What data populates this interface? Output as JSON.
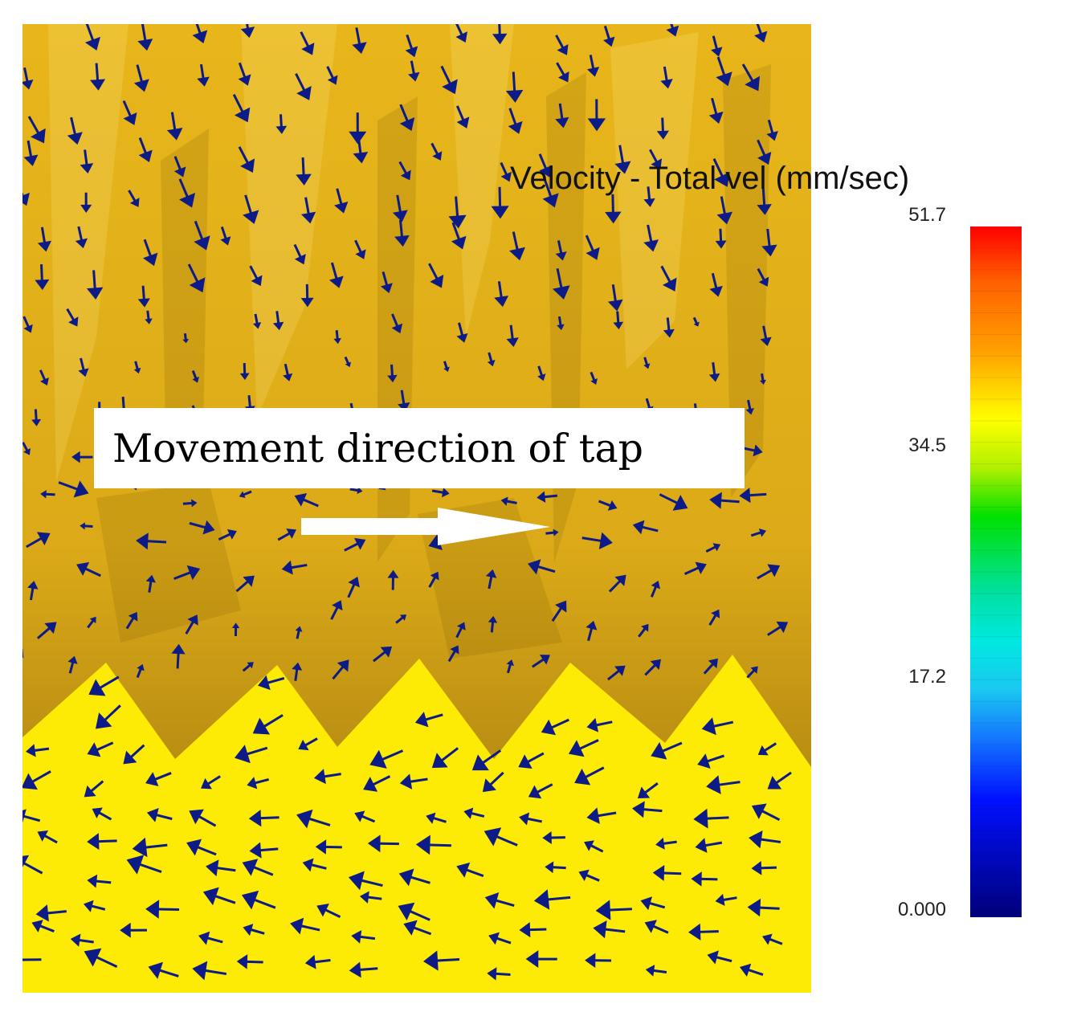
{
  "annotation": {
    "text": "Movement direction of tap"
  },
  "legend": {
    "title": "Velocity - Total vel (mm/sec)",
    "max_label": "51.7",
    "mid_high_label": "34.5",
    "mid_low_label": "17.2",
    "min_label": "0.000",
    "min_value": 0.0,
    "max_value": 51.7
  },
  "colors": {
    "upper_material": "#e2b017",
    "lower_material": "#fdea05",
    "vector_arrows": "#0d1b86",
    "motion_arrow": "#ffffff"
  },
  "icons": {
    "vector": "velocity-arrow-icon",
    "motion": "right-arrow-icon"
  }
}
